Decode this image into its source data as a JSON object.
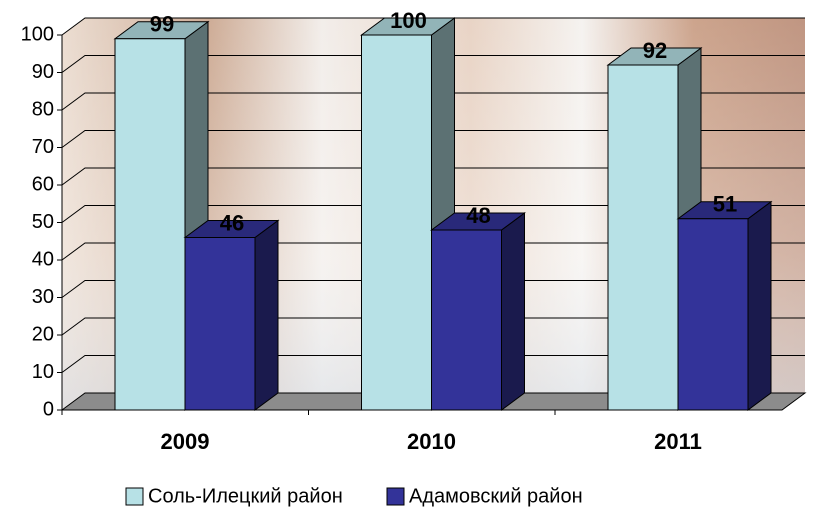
{
  "chart_data": {
    "type": "bar3d",
    "categories": [
      "2009",
      "2010",
      "2011"
    ],
    "series": [
      {
        "name": "Соль-Илецкий район",
        "color": "#b7e1e6",
        "values": [
          99,
          100,
          92
        ]
      },
      {
        "name": "Адамовский район",
        "color": "#333399",
        "values": [
          46,
          48,
          51
        ]
      }
    ],
    "ylim": [
      0,
      100
    ],
    "yticks": [
      0,
      10,
      20,
      30,
      40,
      50,
      60,
      70,
      80,
      90,
      100
    ],
    "grid": true,
    "legend": "bottom"
  }
}
